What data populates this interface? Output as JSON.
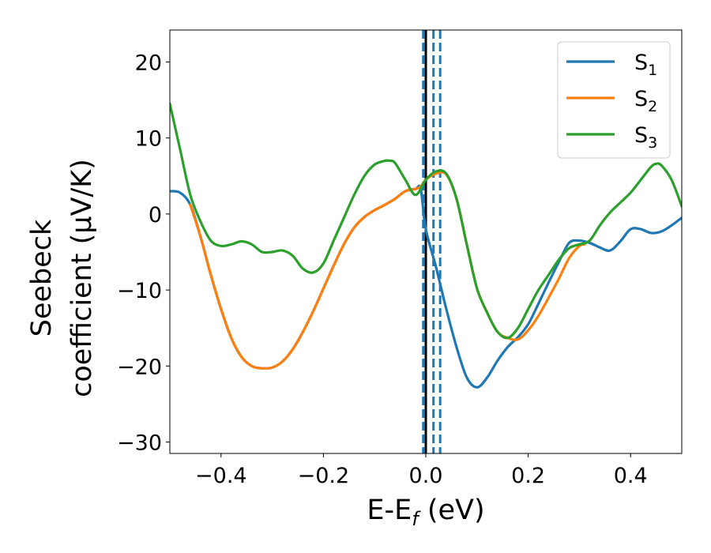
{
  "chart_data": {
    "type": "line",
    "xlabel": {
      "base": "E-E",
      "sub": "f",
      "rest": " (eV)"
    },
    "ylabel": {
      "line1": "Seebeck",
      "line2": "coefficient  (μV/K)"
    },
    "xlim": [
      -0.5,
      0.5
    ],
    "ylim": [
      -31.5,
      24.2
    ],
    "x_ticks": [
      -0.4,
      -0.2,
      0.0,
      0.2,
      0.4
    ],
    "x_tick_labels": [
      "−0.4",
      "−0.2",
      "0.0",
      "0.2",
      "0.4"
    ],
    "y_ticks": [
      20,
      10,
      0,
      -10,
      -20,
      -30
    ],
    "y_tick_labels": [
      "20",
      "10",
      "0",
      "−10",
      "−20",
      "−30"
    ],
    "grid": false,
    "legend_position": "top-right",
    "vertical_lines": [
      {
        "x": 0.0,
        "style": "solid",
        "color": "#000000"
      },
      {
        "x": -0.005,
        "style": "dashed",
        "color": "#1f77b4"
      },
      {
        "x": 0.015,
        "style": "dashed",
        "color": "#1f77b4"
      },
      {
        "x": 0.028,
        "style": "dashed",
        "color": "#1f77b4"
      }
    ],
    "series": [
      {
        "name": "S",
        "sub": "1",
        "color": "#1f77b4",
        "x": [
          -0.5,
          -0.48,
          -0.46,
          -0.44,
          -0.42,
          -0.4,
          -0.38,
          -0.36,
          -0.34,
          -0.32,
          -0.3,
          -0.28,
          -0.26,
          -0.24,
          -0.22,
          -0.2,
          -0.18,
          -0.16,
          -0.14,
          -0.12,
          -0.1,
          -0.08,
          -0.06,
          -0.04,
          -0.02,
          -0.01,
          0.0,
          0.02,
          0.04,
          0.06,
          0.08,
          0.1,
          0.12,
          0.14,
          0.16,
          0.18,
          0.2,
          0.22,
          0.24,
          0.26,
          0.28,
          0.3,
          0.32,
          0.34,
          0.36,
          0.38,
          0.4,
          0.42,
          0.44,
          0.46,
          0.48,
          0.5
        ],
        "y": [
          3,
          2.8,
          1.2,
          -3,
          -8,
          -12.5,
          -16.3,
          -18.8,
          -20,
          -20.3,
          -20.2,
          -19.4,
          -17.8,
          -15.5,
          -12.8,
          -9.8,
          -6.8,
          -4,
          -1.8,
          -0.4,
          0.5,
          1.2,
          2,
          3,
          3.3,
          3.3,
          -2,
          -7,
          -12.5,
          -17.5,
          -21.5,
          -22.8,
          -21.5,
          -19.3,
          -17.5,
          -16.2,
          -14.5,
          -11.8,
          -9,
          -6.3,
          -3.8,
          -3.5,
          -3.8,
          -4.4,
          -4.8,
          -3.6,
          -2,
          -2,
          -2.5,
          -2.3,
          -1.5,
          -0.5
        ]
      },
      {
        "name": "S",
        "sub": "2",
        "color": "#ff7f0e",
        "x": [
          -0.46,
          -0.44,
          -0.42,
          -0.4,
          -0.38,
          -0.36,
          -0.34,
          -0.32,
          -0.3,
          -0.28,
          -0.26,
          -0.24,
          -0.22,
          -0.2,
          -0.18,
          -0.16,
          -0.14,
          -0.12,
          -0.1,
          -0.08,
          -0.06,
          -0.04,
          -0.02,
          -0.01,
          0.0,
          0.02,
          0.04,
          0.06,
          0.08,
          0.1,
          0.12,
          0.14,
          0.16,
          0.18,
          0.2,
          0.22,
          0.24,
          0.26,
          0.28,
          0.3,
          0.31
        ],
        "y": [
          1.2,
          -3,
          -8,
          -12.5,
          -16.3,
          -18.8,
          -20,
          -20.3,
          -20.2,
          -19.4,
          -17.8,
          -15.5,
          -12.8,
          -9.8,
          -6.8,
          -4,
          -1.8,
          -0.4,
          0.5,
          1.2,
          2,
          3,
          3.3,
          3.6,
          4.5,
          5.3,
          5.2,
          2,
          -4,
          -9.8,
          -13,
          -15.5,
          -16.3,
          -16.5,
          -15.3,
          -13.4,
          -11,
          -8.5,
          -5.8,
          -4.2,
          -4
        ]
      },
      {
        "name": "S",
        "sub": "3",
        "color": "#2ca02c",
        "x": [
          -0.5,
          -0.48,
          -0.46,
          -0.44,
          -0.42,
          -0.4,
          -0.38,
          -0.36,
          -0.34,
          -0.32,
          -0.3,
          -0.28,
          -0.26,
          -0.24,
          -0.22,
          -0.2,
          -0.18,
          -0.16,
          -0.14,
          -0.12,
          -0.1,
          -0.08,
          -0.07,
          -0.06,
          -0.04,
          -0.02,
          0.0,
          0.02,
          0.04,
          0.06,
          0.08,
          0.1,
          0.12,
          0.14,
          0.16,
          0.18,
          0.2,
          0.22,
          0.24,
          0.26,
          0.28,
          0.3,
          0.32,
          0.34,
          0.36,
          0.38,
          0.4,
          0.42,
          0.44,
          0.45,
          0.46,
          0.48,
          0.5
        ],
        "y": [
          14.5,
          8.5,
          2.5,
          -1,
          -3.5,
          -4.2,
          -4,
          -3.6,
          -4,
          -5,
          -5,
          -4.8,
          -5.5,
          -7.2,
          -7.7,
          -6.5,
          -3.5,
          -0.5,
          2.5,
          5,
          6.5,
          7,
          7,
          6.7,
          4.5,
          2.5,
          4.5,
          5.6,
          5.3,
          2,
          -4,
          -9.8,
          -13,
          -15.5,
          -16.3,
          -15,
          -12.5,
          -10,
          -8,
          -6,
          -4.5,
          -4,
          -3.5,
          -1.5,
          0.2,
          1.5,
          2.8,
          4.5,
          6.2,
          6.6,
          6.4,
          4.5,
          1
        ]
      }
    ]
  }
}
